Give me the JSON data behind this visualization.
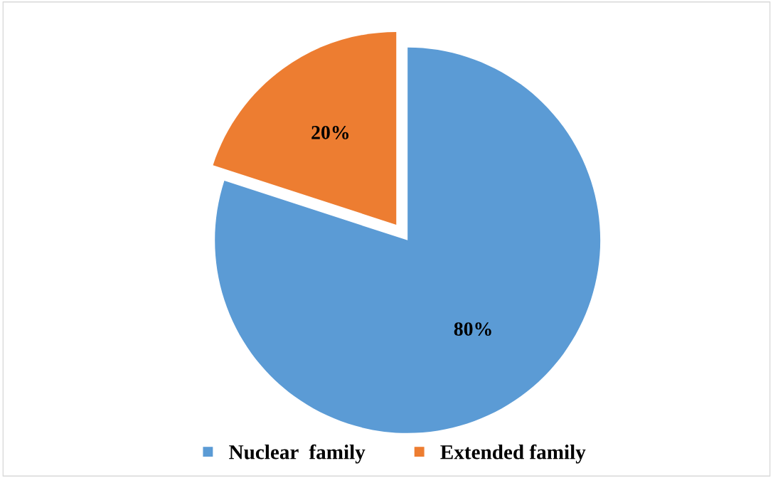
{
  "chart_data": {
    "type": "pie",
    "categories": [
      "Nuclear  family",
      "Extended family"
    ],
    "values": [
      80,
      20
    ],
    "colors": [
      "#5b9bd5",
      "#ed7d31"
    ],
    "value_labels": [
      "80%",
      "20%"
    ],
    "legend": "bottom"
  }
}
